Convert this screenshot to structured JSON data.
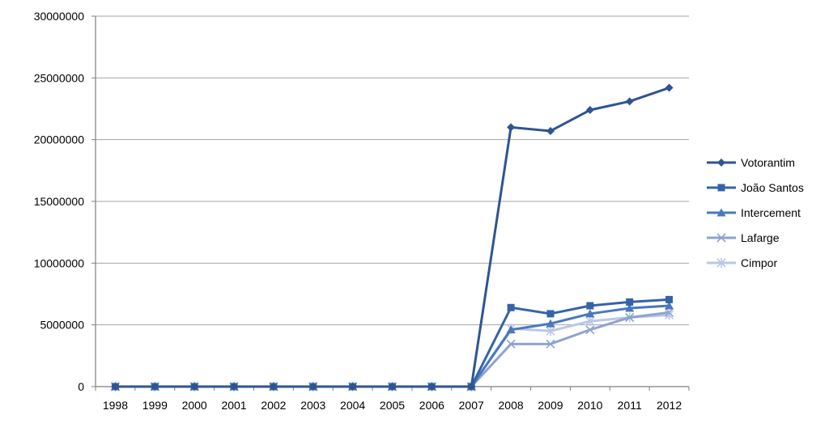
{
  "chart_data": {
    "type": "line",
    "title": "",
    "xlabel": "",
    "ylabel": "",
    "categories": [
      "1998",
      "1999",
      "2000",
      "2001",
      "2002",
      "2003",
      "2004",
      "2005",
      "2006",
      "2007",
      "2008",
      "2009",
      "2010",
      "2011",
      "2012"
    ],
    "ylim": [
      0,
      30000000
    ],
    "yticks": [
      "0",
      "5000000",
      "10000000",
      "15000000",
      "20000000",
      "25000000",
      "30000000"
    ],
    "grid": "horizontal",
    "legend_position": "right",
    "series": [
      {
        "name": "Votorantim",
        "color": "#2e5591",
        "marker": "diamond",
        "values": [
          0,
          0,
          0,
          0,
          0,
          0,
          0,
          0,
          0,
          0,
          21000000,
          20700000,
          22400000,
          23100000,
          24200000
        ]
      },
      {
        "name": "João Santos",
        "color": "#3563a8",
        "marker": "square",
        "values": [
          0,
          0,
          0,
          0,
          0,
          0,
          0,
          0,
          0,
          0,
          6400000,
          5900000,
          6550000,
          6850000,
          7050000
        ]
      },
      {
        "name": "Intercement",
        "color": "#4978bf",
        "marker": "triangle",
        "values": [
          0,
          0,
          0,
          0,
          0,
          0,
          0,
          0,
          0,
          0,
          4600000,
          5100000,
          5900000,
          6350000,
          6550000
        ]
      },
      {
        "name": "Lafarge",
        "color": "#8ea3cf",
        "marker": "x",
        "values": [
          0,
          0,
          0,
          0,
          0,
          0,
          0,
          0,
          0,
          0,
          3450000,
          3450000,
          4600000,
          5600000,
          6000000
        ]
      },
      {
        "name": "Cimpor",
        "color": "#b9c8e6",
        "marker": "star",
        "values": [
          0,
          0,
          0,
          0,
          0,
          0,
          0,
          0,
          0,
          0,
          4700000,
          4500000,
          5300000,
          5600000,
          5800000
        ]
      }
    ]
  }
}
